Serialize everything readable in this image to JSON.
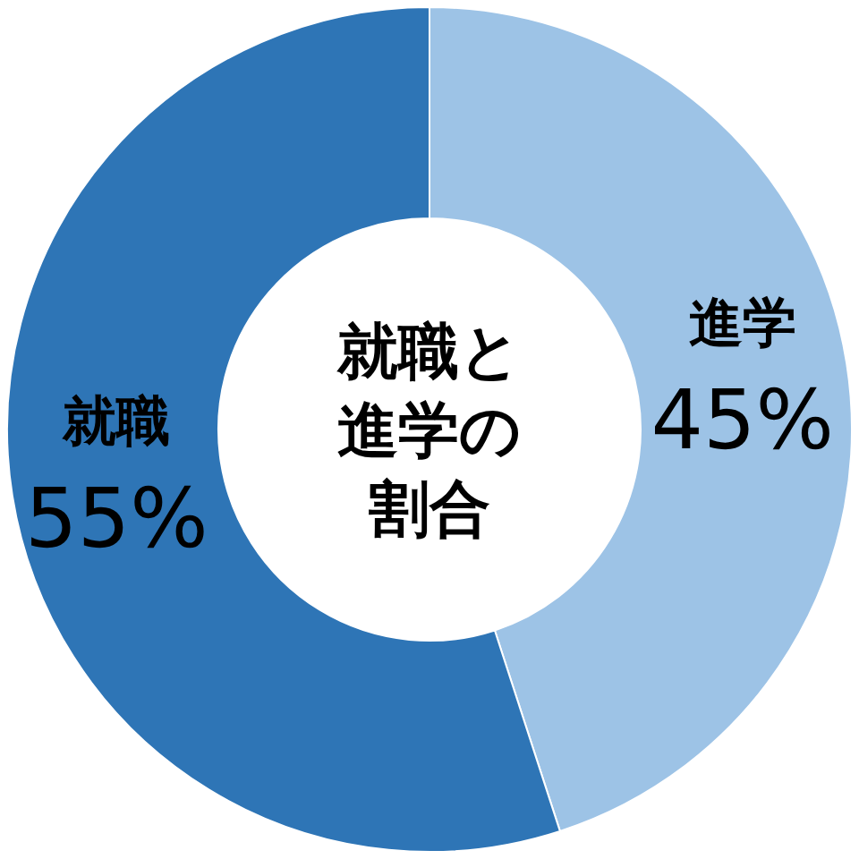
{
  "chart_data": {
    "type": "donut",
    "title": "就職と進学の割合",
    "categories": [
      "進学",
      "就職"
    ],
    "values": [
      45,
      55
    ],
    "colors": [
      "#9dc3e6",
      "#2e75b6"
    ],
    "value_labels": [
      "45%",
      "55%"
    ]
  }
}
